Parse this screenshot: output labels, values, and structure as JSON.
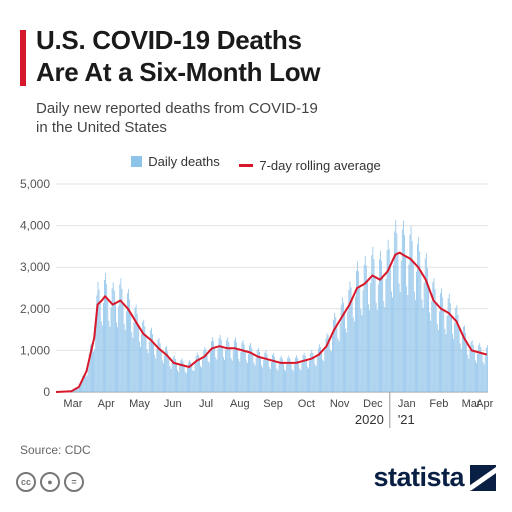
{
  "header": {
    "title_line1": "U.S. COVID-19 Deaths",
    "title_line2": "Are At a Six-Month Low",
    "subtitle_line1": "Daily new reported deaths from COVID-19",
    "subtitle_line2": "in the United States"
  },
  "legend": {
    "bars_label": "Daily deaths",
    "line_label": "7-day rolling average"
  },
  "footer": {
    "source": "Source: CDC",
    "brand": "statista"
  },
  "colors": {
    "title_accent": "#d7182a",
    "bars": "#8ec3ea",
    "line": "#d7182a",
    "brand": "#0a1f44"
  },
  "icons": [
    "cc-icon",
    "person-icon",
    "equals-icon",
    "statista-logo-icon"
  ],
  "chart_data": {
    "type": "bar",
    "ylim": [
      0,
      5000
    ],
    "yticks": [
      "0",
      "1,000",
      "2,000",
      "3,000",
      "4,000",
      "5,000"
    ],
    "month_labels": [
      "Mar",
      "Apr",
      "May",
      "Jun",
      "Jul",
      "Aug",
      "Sep",
      "Oct",
      "Nov",
      "Dec",
      "Jan",
      "Feb",
      "Mar",
      "Apr"
    ],
    "year_labels": [
      "2020",
      "'21"
    ],
    "grid": true,
    "legend_position": "top",
    "rolling_average": {
      "x": [
        "2020-03-01",
        "2020-03-15",
        "2020-03-22",
        "2020-03-29",
        "2020-04-05",
        "2020-04-08",
        "2020-04-12",
        "2020-04-15",
        "2020-04-22",
        "2020-04-29",
        "2020-05-06",
        "2020-05-13",
        "2020-05-20",
        "2020-05-27",
        "2020-06-03",
        "2020-06-10",
        "2020-06-17",
        "2020-06-24",
        "2020-07-01",
        "2020-07-08",
        "2020-07-15",
        "2020-07-22",
        "2020-07-29",
        "2020-08-05",
        "2020-08-12",
        "2020-08-19",
        "2020-08-26",
        "2020-09-02",
        "2020-09-09",
        "2020-09-16",
        "2020-09-23",
        "2020-09-30",
        "2020-10-07",
        "2020-10-14",
        "2020-10-21",
        "2020-10-28",
        "2020-11-04",
        "2020-11-11",
        "2020-11-18",
        "2020-11-25",
        "2020-12-02",
        "2020-12-09",
        "2020-12-16",
        "2020-12-23",
        "2020-12-30",
        "2021-01-06",
        "2021-01-10",
        "2021-01-13",
        "2021-01-20",
        "2021-01-27",
        "2021-02-03",
        "2021-02-10",
        "2021-02-17",
        "2021-02-24",
        "2021-03-03",
        "2021-03-10",
        "2021-03-17",
        "2021-03-24",
        "2021-03-31"
      ],
      "values": [
        0,
        20,
        120,
        500,
        1300,
        2100,
        2200,
        2300,
        2100,
        2200,
        2000,
        1700,
        1400,
        1250,
        1050,
        900,
        700,
        650,
        600,
        750,
        850,
        1050,
        1100,
        1050,
        1050,
        1000,
        950,
        850,
        800,
        750,
        700,
        700,
        700,
        750,
        800,
        900,
        1100,
        1500,
        1800,
        2100,
        2500,
        2600,
        2800,
        2700,
        2900,
        3300,
        3350,
        3300,
        3200,
        3000,
        2700,
        2200,
        2000,
        1900,
        1700,
        1300,
        1000,
        950,
        900
      ]
    }
  }
}
